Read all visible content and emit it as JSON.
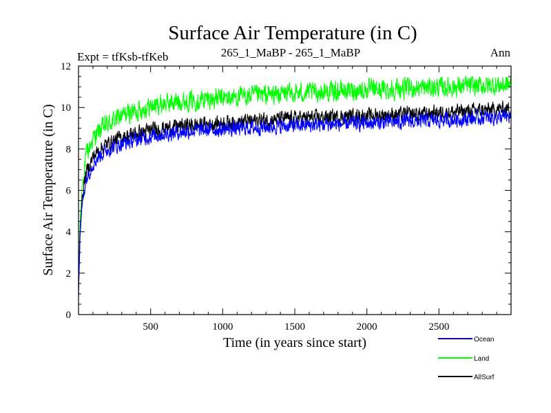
{
  "chart_data": {
    "type": "line",
    "title": "Surface Air Temperature (in C)",
    "subtitle_left": "Expt = tfKsb-tfKeb",
    "subtitle_center": "265_1_MaBP - 265_1_MaBP",
    "subtitle_right": "Ann",
    "xlabel": "Time (in years since start)",
    "ylabel": "Surface Air Temperature (in C)",
    "xlim": [
      0,
      3000
    ],
    "ylim": [
      0,
      12
    ],
    "x_ticks": [
      500,
      1000,
      1500,
      2000,
      2500
    ],
    "y_ticks": [
      0,
      2,
      4,
      6,
      8,
      10,
      12
    ],
    "grid": false,
    "legend_position": "bottom-right",
    "series": [
      {
        "name": "Ocean",
        "color": "#0000ff",
        "noise": 0.45,
        "x": [
          0,
          10,
          25,
          50,
          100,
          150,
          200,
          300,
          400,
          500,
          600,
          700,
          800,
          900,
          1000,
          1200,
          1400,
          1600,
          1800,
          2000,
          2200,
          2400,
          2600,
          2800,
          3000
        ],
        "values": [
          0.9,
          3.6,
          5.3,
          6.5,
          7.3,
          7.7,
          7.95,
          8.25,
          8.45,
          8.6,
          8.72,
          8.82,
          8.88,
          8.92,
          8.95,
          9.02,
          9.1,
          9.15,
          9.2,
          9.25,
          9.3,
          9.35,
          9.42,
          9.5,
          9.55
        ]
      },
      {
        "name": "Land",
        "color": "#00ff00",
        "noise": 0.6,
        "x": [
          0,
          10,
          25,
          50,
          100,
          150,
          200,
          300,
          400,
          500,
          600,
          700,
          800,
          900,
          1000,
          1200,
          1400,
          1600,
          1800,
          2000,
          2200,
          2400,
          2600,
          2800,
          3000
        ],
        "values": [
          1.7,
          4.3,
          6.2,
          7.6,
          8.5,
          8.9,
          9.2,
          9.6,
          9.85,
          10.05,
          10.2,
          10.3,
          10.35,
          10.4,
          10.45,
          10.55,
          10.65,
          10.72,
          10.8,
          10.85,
          10.9,
          10.95,
          11.0,
          11.05,
          11.1
        ]
      },
      {
        "name": "AllSurf",
        "color": "#000000",
        "noise": 0.45,
        "x": [
          0,
          10,
          25,
          50,
          100,
          150,
          200,
          300,
          400,
          500,
          600,
          700,
          800,
          900,
          1000,
          1200,
          1400,
          1600,
          1800,
          2000,
          2200,
          2400,
          2600,
          2800,
          3000
        ],
        "values": [
          1.2,
          3.9,
          5.6,
          6.8,
          7.6,
          8.0,
          8.25,
          8.55,
          8.75,
          8.9,
          9.0,
          9.1,
          9.15,
          9.2,
          9.25,
          9.35,
          9.45,
          9.5,
          9.55,
          9.6,
          9.65,
          9.7,
          9.78,
          9.85,
          9.95
        ]
      }
    ]
  }
}
